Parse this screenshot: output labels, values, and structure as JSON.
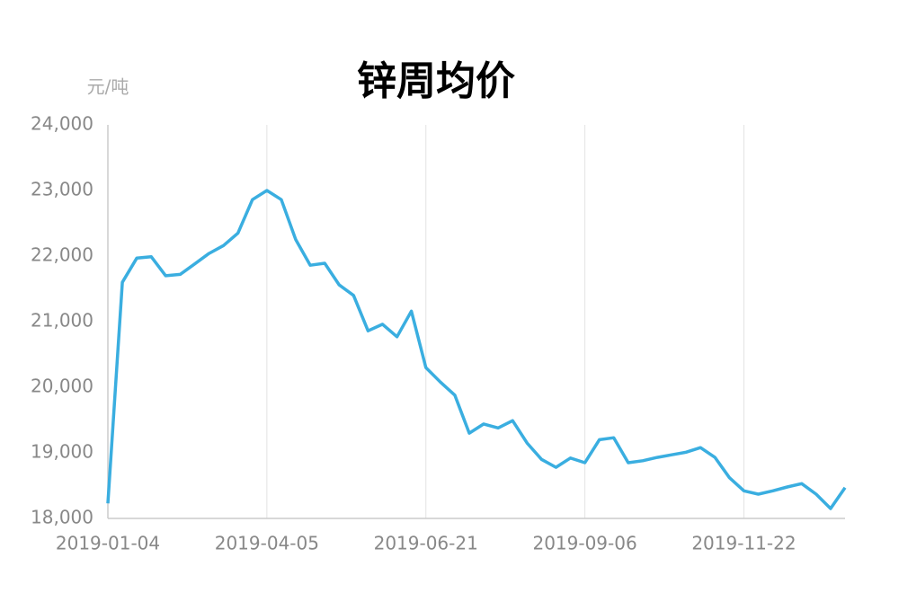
{
  "chart_data": {
    "type": "line",
    "title": "锌周均价",
    "y_unit": "元/吨",
    "categories": [
      "2019-01-04",
      null,
      null,
      null,
      null,
      null,
      null,
      null,
      null,
      null,
      null,
      "2019-04-05",
      null,
      null,
      null,
      null,
      null,
      null,
      null,
      null,
      null,
      null,
      "2019-06-21",
      null,
      null,
      null,
      null,
      null,
      null,
      null,
      null,
      null,
      null,
      "2019-09-06",
      null,
      null,
      null,
      null,
      null,
      null,
      null,
      null,
      null,
      null,
      "2019-11-22",
      null,
      null,
      null,
      null,
      null,
      null,
      null
    ],
    "values": [
      18230,
      21600,
      21970,
      21990,
      21700,
      21720,
      21880,
      22040,
      22160,
      22350,
      22860,
      23000,
      22860,
      22250,
      21860,
      21890,
      21560,
      21400,
      20860,
      20960,
      20770,
      21160,
      20300,
      20080,
      19880,
      19300,
      19440,
      19380,
      19490,
      19150,
      18900,
      18780,
      18920,
      18850,
      19200,
      19230,
      18850,
      18880,
      18930,
      18970,
      19010,
      19080,
      18930,
      18620,
      18420,
      18370,
      18420,
      18480,
      18530,
      18370,
      18150,
      18470
    ],
    "color": "#3aaee0",
    "ylim": [
      18000,
      24000
    ],
    "yticks": [
      {
        "value": 18000,
        "label": "18,000"
      },
      {
        "value": 19000,
        "label": "19,000"
      },
      {
        "value": 20000,
        "label": "20,000"
      },
      {
        "value": 21000,
        "label": "21,000"
      },
      {
        "value": 22000,
        "label": "22,000"
      },
      {
        "value": 23000,
        "label": "23,000"
      },
      {
        "value": 24000,
        "label": "24,000"
      }
    ],
    "grid": true
  }
}
